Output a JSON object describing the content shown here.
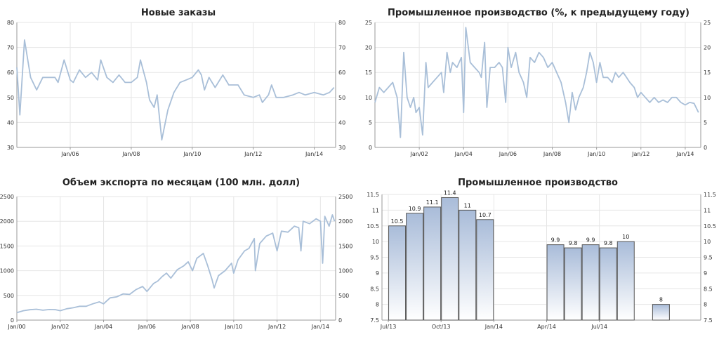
{
  "chart_data": [
    {
      "id": "orders",
      "type": "line",
      "title": "Новые заказы",
      "ylim": [
        30,
        80
      ],
      "yticks": [
        "30",
        "40",
        "50",
        "60",
        "70",
        "80"
      ],
      "xlim": [
        2004.25,
        2014.7
      ],
      "xticks": [
        {
          "v": 2006,
          "label": "Jan/06"
        },
        {
          "v": 2008,
          "label": "Jan/08"
        },
        {
          "v": 2010,
          "label": "Jan/10"
        },
        {
          "v": 2012,
          "label": "Jan/12"
        },
        {
          "v": 2014,
          "label": "Jan/14"
        }
      ],
      "points": [
        [
          2004.25,
          62
        ],
        [
          2004.35,
          43
        ],
        [
          2004.5,
          73
        ],
        [
          2004.7,
          58
        ],
        [
          2004.9,
          53
        ],
        [
          2005.1,
          58
        ],
        [
          2005.3,
          58
        ],
        [
          2005.5,
          58
        ],
        [
          2005.6,
          56
        ],
        [
          2005.8,
          65
        ],
        [
          2006.0,
          57
        ],
        [
          2006.1,
          56
        ],
        [
          2006.3,
          61
        ],
        [
          2006.5,
          58
        ],
        [
          2006.7,
          60
        ],
        [
          2006.9,
          57
        ],
        [
          2007.0,
          65
        ],
        [
          2007.2,
          58
        ],
        [
          2007.4,
          56
        ],
        [
          2007.6,
          59
        ],
        [
          2007.8,
          56
        ],
        [
          2008.0,
          56
        ],
        [
          2008.2,
          58
        ],
        [
          2008.3,
          65
        ],
        [
          2008.5,
          56
        ],
        [
          2008.6,
          49
        ],
        [
          2008.75,
          46
        ],
        [
          2008.85,
          51
        ],
        [
          2009.0,
          33
        ],
        [
          2009.2,
          45
        ],
        [
          2009.4,
          52
        ],
        [
          2009.6,
          56
        ],
        [
          2009.8,
          57
        ],
        [
          2010.0,
          58
        ],
        [
          2010.2,
          61
        ],
        [
          2010.3,
          59
        ],
        [
          2010.4,
          53
        ],
        [
          2010.55,
          58
        ],
        [
          2010.75,
          54
        ],
        [
          2011.0,
          59
        ],
        [
          2011.2,
          55
        ],
        [
          2011.5,
          55
        ],
        [
          2011.7,
          51
        ],
        [
          2012.0,
          50
        ],
        [
          2012.2,
          51
        ],
        [
          2012.3,
          48
        ],
        [
          2012.5,
          51
        ],
        [
          2012.6,
          55
        ],
        [
          2012.75,
          50
        ],
        [
          2013.0,
          50
        ],
        [
          2013.3,
          51
        ],
        [
          2013.5,
          52
        ],
        [
          2013.7,
          51
        ],
        [
          2014.0,
          52
        ],
        [
          2014.3,
          51
        ],
        [
          2014.5,
          52
        ],
        [
          2014.65,
          54
        ]
      ]
    },
    {
      "id": "industrial_yoy",
      "type": "line",
      "title": "Промышленное производство (%, к предыдущему году)",
      "ylim": [
        0,
        25
      ],
      "yticks": [
        "0",
        "5",
        "10",
        "15",
        "20",
        "25"
      ],
      "xlim": [
        2000.0,
        2014.7
      ],
      "xticks": [
        {
          "v": 2002,
          "label": "Jan/02"
        },
        {
          "v": 2004,
          "label": "Jan/04"
        },
        {
          "v": 2006,
          "label": "Jan/06"
        },
        {
          "v": 2008,
          "label": "Jan/08"
        },
        {
          "v": 2010,
          "label": "Jan/10"
        },
        {
          "v": 2012,
          "label": "Jan/12"
        },
        {
          "v": 2014,
          "label": "Jan/14"
        }
      ],
      "points": [
        [
          2000.0,
          9
        ],
        [
          2000.2,
          12
        ],
        [
          2000.4,
          11
        ],
        [
          2000.6,
          12
        ],
        [
          2000.8,
          13
        ],
        [
          2001.0,
          10
        ],
        [
          2001.15,
          2
        ],
        [
          2001.3,
          19
        ],
        [
          2001.45,
          10
        ],
        [
          2001.6,
          8
        ],
        [
          2001.75,
          10
        ],
        [
          2001.85,
          7
        ],
        [
          2002.0,
          8
        ],
        [
          2002.15,
          2.5
        ],
        [
          2002.3,
          17
        ],
        [
          2002.4,
          12
        ],
        [
          2002.6,
          13
        ],
        [
          2002.8,
          14
        ],
        [
          2003.0,
          15
        ],
        [
          2003.1,
          11
        ],
        [
          2003.25,
          19
        ],
        [
          2003.4,
          15
        ],
        [
          2003.5,
          17
        ],
        [
          2003.7,
          16
        ],
        [
          2003.9,
          18
        ],
        [
          2004.0,
          7
        ],
        [
          2004.1,
          24
        ],
        [
          2004.3,
          17
        ],
        [
          2004.5,
          16
        ],
        [
          2004.7,
          15
        ],
        [
          2004.8,
          14
        ],
        [
          2004.95,
          21
        ],
        [
          2005.05,
          8
        ],
        [
          2005.2,
          16
        ],
        [
          2005.4,
          16
        ],
        [
          2005.6,
          17
        ],
        [
          2005.75,
          16
        ],
        [
          2005.9,
          9
        ],
        [
          2006.0,
          20
        ],
        [
          2006.15,
          16
        ],
        [
          2006.35,
          19
        ],
        [
          2006.5,
          15
        ],
        [
          2006.7,
          13
        ],
        [
          2006.85,
          10
        ],
        [
          2007.0,
          18
        ],
        [
          2007.2,
          17
        ],
        [
          2007.4,
          19
        ],
        [
          2007.6,
          18
        ],
        [
          2007.8,
          16
        ],
        [
          2008.0,
          17
        ],
        [
          2008.2,
          15
        ],
        [
          2008.4,
          13
        ],
        [
          2008.6,
          9
        ],
        [
          2008.75,
          5
        ],
        [
          2008.9,
          11
        ],
        [
          2009.05,
          7.5
        ],
        [
          2009.2,
          10
        ],
        [
          2009.4,
          12
        ],
        [
          2009.55,
          15
        ],
        [
          2009.7,
          19
        ],
        [
          2009.85,
          17
        ],
        [
          2010.0,
          13
        ],
        [
          2010.15,
          17
        ],
        [
          2010.3,
          14
        ],
        [
          2010.5,
          14
        ],
        [
          2010.7,
          13
        ],
        [
          2010.85,
          15
        ],
        [
          2011.0,
          14
        ],
        [
          2011.2,
          15
        ],
        [
          2011.35,
          14
        ],
        [
          2011.5,
          13
        ],
        [
          2011.7,
          12
        ],
        [
          2011.85,
          10
        ],
        [
          2012.0,
          11
        ],
        [
          2012.2,
          10
        ],
        [
          2012.4,
          9
        ],
        [
          2012.6,
          10
        ],
        [
          2012.8,
          9
        ],
        [
          2013.0,
          9.5
        ],
        [
          2013.2,
          9
        ],
        [
          2013.4,
          10
        ],
        [
          2013.6,
          10
        ],
        [
          2013.8,
          9
        ],
        [
          2014.0,
          8.5
        ],
        [
          2014.2,
          9
        ],
        [
          2014.4,
          8.8
        ],
        [
          2014.6,
          7
        ]
      ]
    },
    {
      "id": "exports",
      "type": "line",
      "title": "Объем экспорта по месяцам (100 млн. долл)",
      "ylim": [
        0,
        2500
      ],
      "yticks": [
        "0",
        "500",
        "1000",
        "1500",
        "2000",
        "2500"
      ],
      "xlim": [
        2000.0,
        2014.7
      ],
      "xticks": [
        {
          "v": 2000,
          "label": "Jan/00"
        },
        {
          "v": 2002,
          "label": "Jan/02"
        },
        {
          "v": 2004,
          "label": "Jan/04"
        },
        {
          "v": 2006,
          "label": "Jan/06"
        },
        {
          "v": 2008,
          "label": "Jan/08"
        },
        {
          "v": 2010,
          "label": "Jan/10"
        },
        {
          "v": 2012,
          "label": "Jan/12"
        },
        {
          "v": 2014,
          "label": "Jan/14"
        }
      ],
      "points": [
        [
          2000.0,
          150
        ],
        [
          2000.3,
          190
        ],
        [
          2000.6,
          210
        ],
        [
          2000.9,
          220
        ],
        [
          2001.2,
          200
        ],
        [
          2001.5,
          215
        ],
        [
          2001.8,
          210
        ],
        [
          2002.0,
          190
        ],
        [
          2002.3,
          230
        ],
        [
          2002.6,
          250
        ],
        [
          2002.9,
          280
        ],
        [
          2003.2,
          280
        ],
        [
          2003.5,
          330
        ],
        [
          2003.8,
          370
        ],
        [
          2004.0,
          330
        ],
        [
          2004.3,
          450
        ],
        [
          2004.6,
          470
        ],
        [
          2004.9,
          530
        ],
        [
          2005.2,
          520
        ],
        [
          2005.5,
          620
        ],
        [
          2005.8,
          680
        ],
        [
          2006.0,
          580
        ],
        [
          2006.3,
          740
        ],
        [
          2006.5,
          790
        ],
        [
          2006.7,
          880
        ],
        [
          2006.9,
          950
        ],
        [
          2007.1,
          850
        ],
        [
          2007.4,
          1020
        ],
        [
          2007.7,
          1100
        ],
        [
          2007.9,
          1180
        ],
        [
          2008.1,
          1000
        ],
        [
          2008.3,
          1250
        ],
        [
          2008.6,
          1350
        ],
        [
          2008.8,
          1100
        ],
        [
          2009.0,
          820
        ],
        [
          2009.1,
          650
        ],
        [
          2009.3,
          900
        ],
        [
          2009.6,
          1000
        ],
        [
          2009.9,
          1150
        ],
        [
          2010.0,
          950
        ],
        [
          2010.2,
          1220
        ],
        [
          2010.5,
          1400
        ],
        [
          2010.7,
          1450
        ],
        [
          2010.95,
          1650
        ],
        [
          2011.0,
          1000
        ],
        [
          2011.2,
          1550
        ],
        [
          2011.5,
          1700
        ],
        [
          2011.8,
          1760
        ],
        [
          2012.0,
          1400
        ],
        [
          2012.2,
          1800
        ],
        [
          2012.5,
          1780
        ],
        [
          2012.8,
          1900
        ],
        [
          2013.0,
          1870
        ],
        [
          2013.1,
          1400
        ],
        [
          2013.2,
          2000
        ],
        [
          2013.5,
          1950
        ],
        [
          2013.8,
          2050
        ],
        [
          2014.0,
          2000
        ],
        [
          2014.1,
          1150
        ],
        [
          2014.2,
          2100
        ],
        [
          2014.4,
          1900
        ],
        [
          2014.55,
          2130
        ],
        [
          2014.65,
          2000
        ]
      ]
    },
    {
      "id": "industrial_bars",
      "type": "bar",
      "title": "Промышленное производство",
      "ylim": [
        7.5,
        11.5
      ],
      "yticks": [
        "7.5",
        "8",
        "8.5",
        "9",
        "9.5",
        "10",
        "10.5",
        "11",
        "11.5"
      ],
      "xlim": [
        2013.47,
        2014.98
      ],
      "xticks": [
        {
          "v": 2013.5,
          "label": "Jul/13"
        },
        {
          "v": 2013.75,
          "label": "Oct/13"
        },
        {
          "v": 2014.0,
          "label": "Jan/14"
        },
        {
          "v": 2014.25,
          "label": "Apr/14"
        },
        {
          "v": 2014.5,
          "label": "Jul/14"
        }
      ],
      "bars": [
        {
          "x": 2013.5417,
          "value": 10.5,
          "label": "10.5"
        },
        {
          "x": 2013.625,
          "value": 10.9,
          "label": "10.9"
        },
        {
          "x": 2013.7083,
          "value": 11.1,
          "label": "11.1"
        },
        {
          "x": 2013.7917,
          "value": 11.4,
          "label": "11.4"
        },
        {
          "x": 2013.875,
          "value": 11,
          "label": "11"
        },
        {
          "x": 2013.9583,
          "value": 10.7,
          "label": "10.7"
        },
        {
          "x": 2014.2917,
          "value": 9.9,
          "label": "9.9"
        },
        {
          "x": 2014.375,
          "value": 9.8,
          "label": "9.8"
        },
        {
          "x": 2014.4583,
          "value": 9.9,
          "label": "9.9"
        },
        {
          "x": 2014.5417,
          "value": 9.8,
          "label": "9.8"
        },
        {
          "x": 2014.625,
          "value": 10,
          "label": "10"
        },
        {
          "x": 2014.7917,
          "value": 8,
          "label": "8"
        }
      ]
    }
  ]
}
